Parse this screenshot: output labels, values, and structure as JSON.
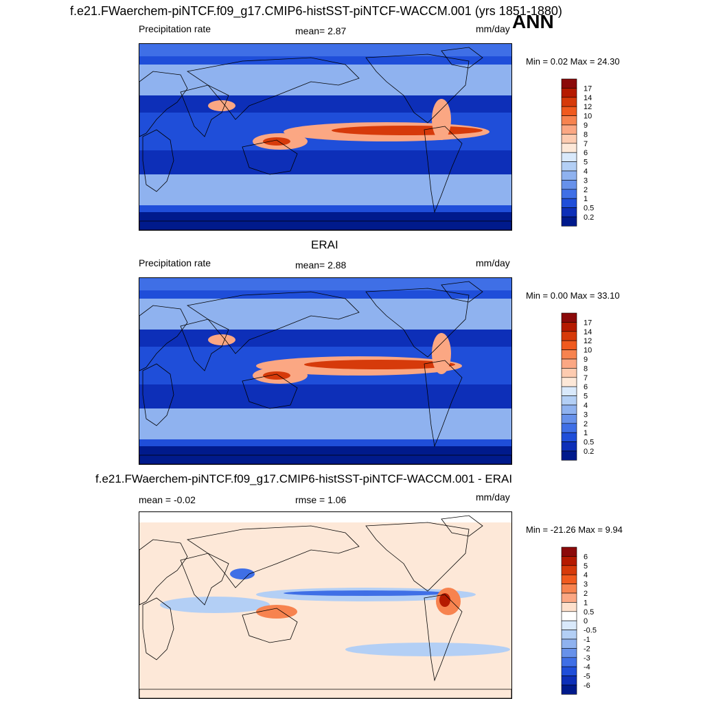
{
  "header": {
    "case_title": "f.e21.FWaerchem-piNTCF.f09_g17.CMIP6-histSST-piNTCF-WACCM.001 (yrs 1851-1880)",
    "season": "ANN"
  },
  "panels": [
    {
      "id": "model",
      "title": "",
      "left_label": "Precipitation rate",
      "center_label": "mean=   2.87",
      "units": "mm/day",
      "minmax": "Min =   0.02 Max =  24.30",
      "scale": "abs"
    },
    {
      "id": "obs",
      "title": "ERAI",
      "left_label": "Precipitation rate",
      "center_label": "mean=   2.88",
      "units": "mm/day",
      "minmax": "Min =   0.00 Max =  33.10",
      "scale": "abs"
    },
    {
      "id": "diff",
      "title": "f.e21.FWaerchem-piNTCF.f09_g17.CMIP6-histSST-piNTCF-WACCM.001 - ERAI",
      "left_label": "mean =  -0.02",
      "center_label": "rmse =   1.06",
      "units": "mm/day",
      "minmax": "Min = -21.26 Max =   9.94",
      "scale": "diff"
    }
  ],
  "colorbars": {
    "abs": {
      "labels": [
        "17",
        "14",
        "12",
        "10",
        "9",
        "8",
        "7",
        "6",
        "5",
        "4",
        "3",
        "2",
        "1",
        "0.5",
        "0.2"
      ],
      "colors": [
        "#8b0a0a",
        "#b51a00",
        "#d63a0a",
        "#f05a1e",
        "#f7834f",
        "#fba783",
        "#fdcbb0",
        "#fde8d8",
        "#d9e9fb",
        "#b3cff5",
        "#8fb2ef",
        "#6791ea",
        "#3f6fe6",
        "#1f4ed9",
        "#0d2fb8",
        "#001a8c"
      ]
    },
    "diff": {
      "labels": [
        "6",
        "5",
        "4",
        "3",
        "2",
        "1",
        "0.5",
        "0",
        "-0.5",
        "-1",
        "-2",
        "-3",
        "-4",
        "-5",
        "-6"
      ],
      "colors": [
        "#8b0a0a",
        "#b51a00",
        "#d63a0a",
        "#f05a1e",
        "#f7834f",
        "#fba783",
        "#fde0cc",
        "#ffffff",
        "#d9e9fb",
        "#b3cff5",
        "#8fb2ef",
        "#6791ea",
        "#3f6fe6",
        "#1f4ed9",
        "#0d2fb8",
        "#001a8c"
      ]
    }
  },
  "map_colors": {
    "abs": {
      "ocean_deep": "#1f4ed9",
      "band_dry": "#0d2fb8",
      "band_mid": "#3f6fe6",
      "band_wet": "#8fb2ef",
      "polar": "#001a8c",
      "itcz_core": "#d63a0a",
      "itcz_edge": "#fba783",
      "land": "#ffffff"
    },
    "diff": {
      "base": "#fde8d8",
      "neg": "#b3cff5",
      "neg_strong": "#3f6fe6",
      "pos": "#f7834f",
      "pos_strong": "#b51a00"
    }
  }
}
